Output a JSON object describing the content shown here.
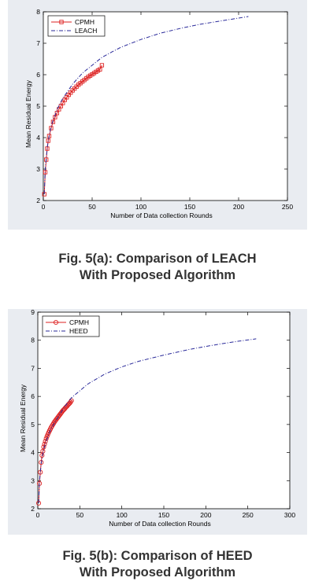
{
  "chart_data": [
    {
      "type": "line",
      "xlabel": "Number of Data collection Rounds",
      "ylabel": "Mean Residual Energy",
      "xlim": [
        0,
        250
      ],
      "ylim": [
        2,
        8
      ],
      "xticks": [
        "0",
        "50",
        "100",
        "150",
        "200",
        "250"
      ],
      "yticks": [
        "2",
        "3",
        "4",
        "5",
        "6",
        "7",
        "8"
      ],
      "grid": false,
      "legend_position": "top-left",
      "series": [
        {
          "name": "CPMH",
          "color": "#dd2222",
          "style": "solid-markers-square",
          "x": [
            1,
            2,
            3,
            4,
            5,
            6,
            8,
            10,
            12,
            14,
            16,
            18,
            20,
            22,
            24,
            26,
            28,
            30,
            32,
            34,
            36,
            38,
            40,
            42,
            44,
            46,
            48,
            50,
            52,
            54,
            56,
            58,
            60
          ],
          "y": [
            2.2,
            2.9,
            3.3,
            3.65,
            3.9,
            4.05,
            4.3,
            4.5,
            4.65,
            4.78,
            4.9,
            5.0,
            5.1,
            5.2,
            5.28,
            5.36,
            5.43,
            5.5,
            5.56,
            5.62,
            5.68,
            5.73,
            5.78,
            5.83,
            5.88,
            5.93,
            5.97,
            6.01,
            6.05,
            6.09,
            6.13,
            6.17,
            6.3
          ]
        },
        {
          "name": "LEACH",
          "color": "#2a2a9a",
          "style": "dash-dot",
          "x": [
            1,
            2,
            4,
            6,
            8,
            10,
            15,
            20,
            30,
            40,
            50,
            60,
            70,
            80,
            100,
            120,
            140,
            160,
            180,
            200,
            210
          ],
          "y": [
            2.2,
            3.0,
            3.7,
            4.05,
            4.35,
            4.55,
            4.95,
            5.25,
            5.7,
            6.05,
            6.3,
            6.55,
            6.72,
            6.88,
            7.12,
            7.32,
            7.47,
            7.6,
            7.7,
            7.8,
            7.85
          ]
        }
      ]
    },
    {
      "type": "line",
      "xlabel": "Number of Data collection Rounds",
      "ylabel": "Mean Residual Energy",
      "xlim": [
        0,
        300
      ],
      "ylim": [
        2,
        9
      ],
      "xticks": [
        "0",
        "50",
        "100",
        "150",
        "200",
        "250",
        "300"
      ],
      "yticks": [
        "2",
        "3",
        "4",
        "5",
        "6",
        "7",
        "8",
        "9"
      ],
      "grid": false,
      "legend_position": "top-left",
      "series": [
        {
          "name": "CPMH",
          "color": "#dd2222",
          "style": "solid-markers-circle",
          "x": [
            1,
            2,
            3,
            4,
            5,
            6,
            7,
            8,
            9,
            10,
            11,
            12,
            13,
            14,
            15,
            16,
            17,
            18,
            19,
            20,
            21,
            22,
            23,
            24,
            25,
            26,
            27,
            28,
            29,
            30,
            31,
            32,
            33,
            34,
            35,
            36,
            37,
            38,
            39,
            40
          ],
          "y": [
            2.2,
            2.9,
            3.3,
            3.65,
            3.9,
            4.05,
            4.2,
            4.3,
            4.4,
            4.5,
            4.58,
            4.65,
            4.72,
            4.78,
            4.84,
            4.9,
            4.95,
            5.0,
            5.05,
            5.1,
            5.14,
            5.18,
            5.22,
            5.26,
            5.3,
            5.34,
            5.38,
            5.42,
            5.46,
            5.5,
            5.53,
            5.56,
            5.6,
            5.63,
            5.66,
            5.7,
            5.73,
            5.76,
            5.8,
            5.85
          ]
        },
        {
          "name": "HEED",
          "color": "#2a2a9a",
          "style": "dash-dot",
          "x": [
            1,
            2,
            4,
            6,
            8,
            10,
            15,
            20,
            30,
            40,
            50,
            60,
            80,
            100,
            120,
            150,
            180,
            200,
            220,
            240,
            260
          ],
          "y": [
            2.2,
            3.0,
            3.6,
            3.95,
            4.2,
            4.4,
            4.8,
            5.05,
            5.55,
            5.95,
            6.2,
            6.45,
            6.8,
            7.05,
            7.25,
            7.47,
            7.67,
            7.78,
            7.88,
            7.97,
            8.05
          ]
        }
      ]
    }
  ],
  "captions": [
    {
      "line1": "Fig. 5(a): Comparison of LEACH",
      "line2": "With Proposed Algorithm"
    },
    {
      "line1": "Fig. 5(b): Comparison of HEED",
      "line2": "With Proposed Algorithm"
    }
  ]
}
